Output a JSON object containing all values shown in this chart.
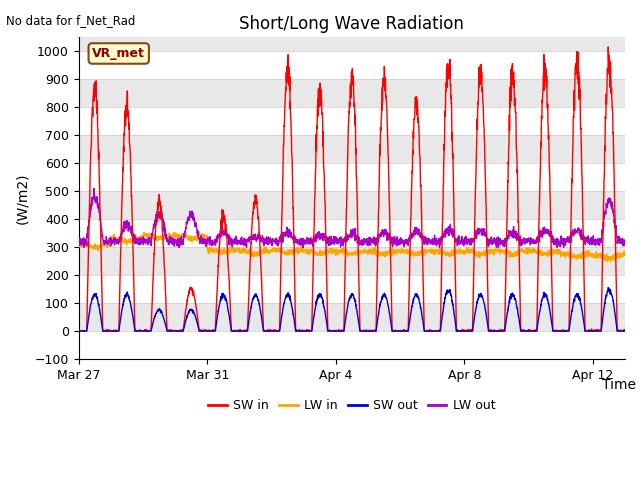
{
  "title": "Short/Long Wave Radiation",
  "xlabel": "Time",
  "ylabel": "(W/m2)",
  "ylim": [
    -100,
    1050
  ],
  "yticks": [
    -100,
    0,
    100,
    200,
    300,
    400,
    500,
    600,
    700,
    800,
    900,
    1000
  ],
  "annotation_top_left": "No data for f_Net_Rad",
  "legend_box_label": "VR_met",
  "background_color": "#e8e8e8",
  "figsize": [
    6.4,
    4.8
  ],
  "dpi": 100,
  "lines": {
    "SW_in": {
      "color": "#ff0000",
      "label": "SW in",
      "lw": 1.0
    },
    "LW_in": {
      "color": "#ffa500",
      "label": "LW in",
      "lw": 1.0
    },
    "SW_out": {
      "color": "#0000dd",
      "label": "SW out",
      "lw": 1.0
    },
    "LW_out": {
      "color": "#aa00cc",
      "label": "LW out",
      "lw": 1.0
    }
  },
  "num_days": 17,
  "pts_per_hour": 6,
  "seed": 42,
  "SW_in_daily_peaks": [
    870,
    800,
    460,
    150,
    420,
    480,
    940,
    860,
    910,
    910,
    820,
    950,
    930,
    920,
    930,
    970,
    980
  ],
  "SW_out_daily_peaks": [
    130,
    130,
    75,
    75,
    130,
    130,
    130,
    130,
    130,
    130,
    130,
    145,
    130,
    130,
    130,
    130,
    150
  ],
  "LW_in_daily_base": [
    310,
    330,
    340,
    340,
    290,
    285,
    290,
    285,
    285,
    285,
    285,
    285,
    285,
    285,
    285,
    275,
    270
  ],
  "LW_out_daily_peaks": [
    480,
    380,
    420,
    415,
    350,
    335,
    350,
    340,
    345,
    350,
    355,
    360,
    360,
    350,
    360,
    360,
    465
  ]
}
